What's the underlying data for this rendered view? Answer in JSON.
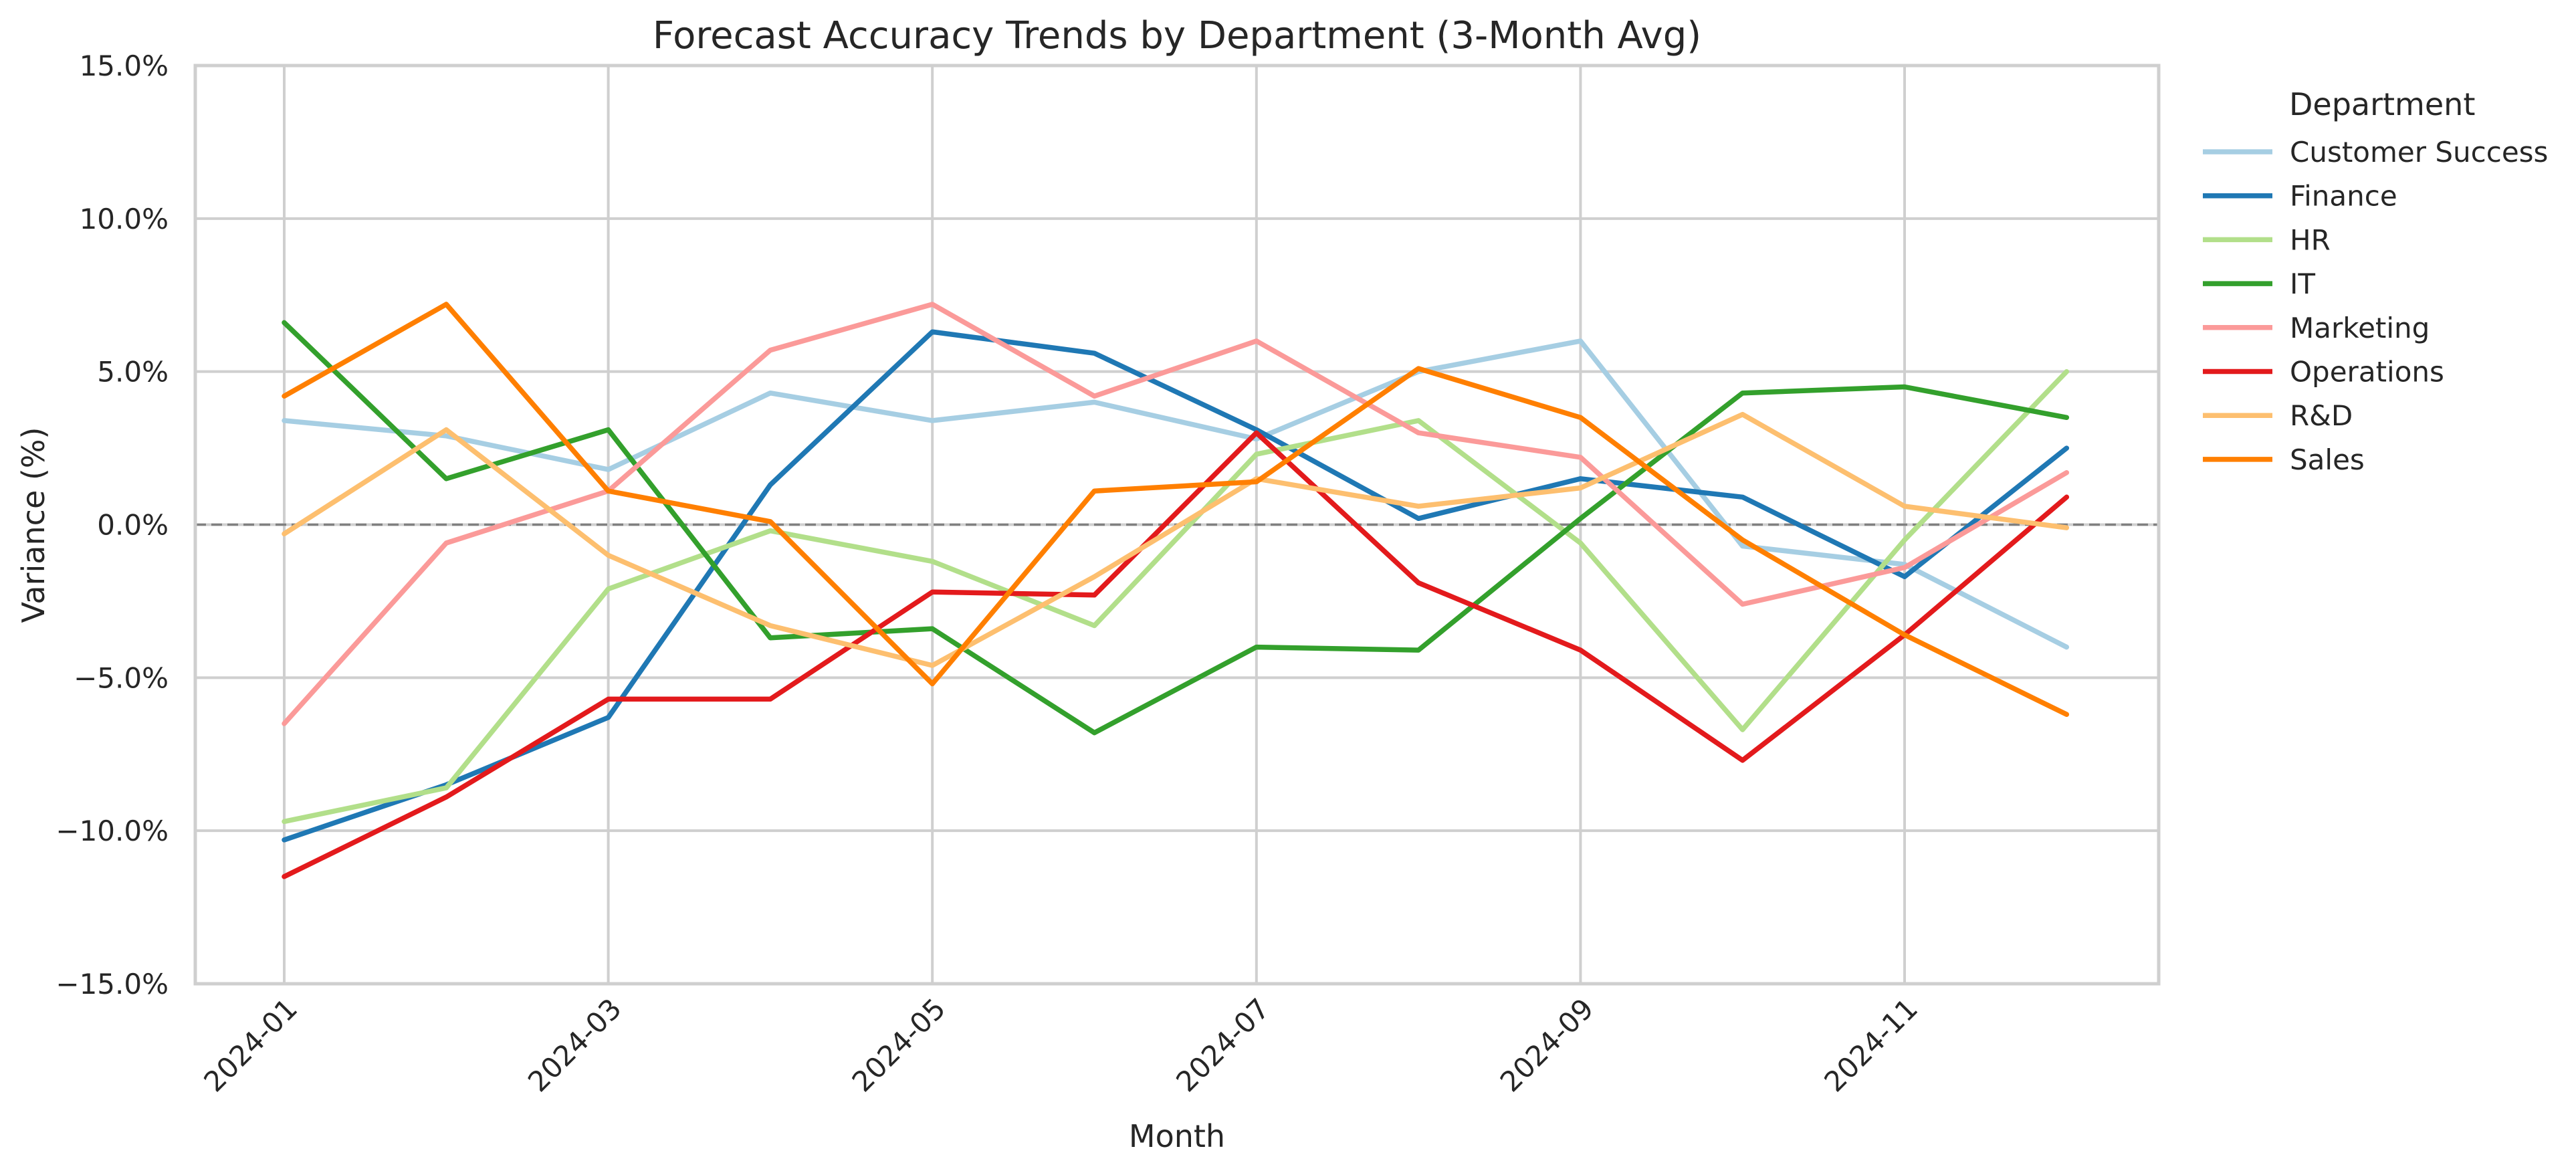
{
  "chart_data": {
    "type": "line",
    "title": "Forecast Accuracy Trends by Department (3-Month Avg)",
    "xlabel": "Month",
    "ylabel": "Variance (%)",
    "x": [
      "2024-01",
      "2024-02",
      "2024-03",
      "2024-04",
      "2024-05",
      "2024-06",
      "2024-07",
      "2024-08",
      "2024-09",
      "2024-10",
      "2024-11",
      "2024-12"
    ],
    "x_tick_labels": [
      "2024-01",
      "2024-03",
      "2024-05",
      "2024-07",
      "2024-09",
      "2024-11"
    ],
    "ylim": [
      -15,
      15
    ],
    "y_ticks": [
      -15,
      -10,
      -5,
      0,
      5,
      10,
      15
    ],
    "y_tick_labels": [
      "−15.0%",
      "−10.0%",
      "−5.0%",
      "0.0%",
      "5.0%",
      "10.0%",
      "15.0%"
    ],
    "grid": true,
    "reference_line": {
      "y": 0,
      "style": "dashed"
    },
    "legend": {
      "title": "Department",
      "placement": "outside-right-top"
    },
    "series": [
      {
        "name": "Customer Success",
        "color": "#a6cee3",
        "values": [
          3.4,
          2.9,
          1.8,
          4.3,
          3.4,
          4.0,
          2.8,
          5.0,
          6.0,
          -0.7,
          -1.3,
          -4.0
        ]
      },
      {
        "name": "Finance",
        "color": "#1f78b4",
        "values": [
          -10.3,
          -8.5,
          -6.3,
          1.3,
          6.3,
          5.6,
          3.1,
          0.2,
          1.5,
          0.9,
          -1.7,
          2.5
        ]
      },
      {
        "name": "HR",
        "color": "#b2df8a",
        "values": [
          -9.7,
          -8.6,
          -2.1,
          -0.2,
          -1.2,
          -3.3,
          2.3,
          3.4,
          -0.6,
          -6.7,
          -0.5,
          5.0
        ]
      },
      {
        "name": "IT",
        "color": "#33a02c",
        "values": [
          6.6,
          1.5,
          3.1,
          -3.7,
          -3.4,
          -6.8,
          -4.0,
          -4.1,
          0.2,
          4.3,
          4.5,
          3.5
        ]
      },
      {
        "name": "Marketing",
        "color": "#fb9a99",
        "values": [
          -6.5,
          -0.6,
          1.1,
          5.7,
          7.2,
          4.2,
          6.0,
          3.0,
          2.2,
          -2.6,
          -1.4,
          1.7
        ]
      },
      {
        "name": "Operations",
        "color": "#e31a1c",
        "values": [
          -11.5,
          -8.9,
          -5.7,
          -5.7,
          -2.2,
          -2.3,
          3.0,
          -1.9,
          -4.1,
          -7.7,
          -3.6,
          0.9
        ]
      },
      {
        "name": "R&D",
        "color": "#fdbf6f",
        "values": [
          -0.3,
          3.1,
          -1.0,
          -3.3,
          -4.6,
          -1.7,
          1.5,
          0.6,
          1.2,
          3.6,
          0.6,
          -0.1
        ]
      },
      {
        "name": "Sales",
        "color": "#ff7f00",
        "values": [
          4.2,
          7.2,
          1.1,
          0.1,
          -5.2,
          1.1,
          1.4,
          5.1,
          3.5,
          -0.5,
          -3.6,
          -6.2
        ]
      }
    ]
  }
}
